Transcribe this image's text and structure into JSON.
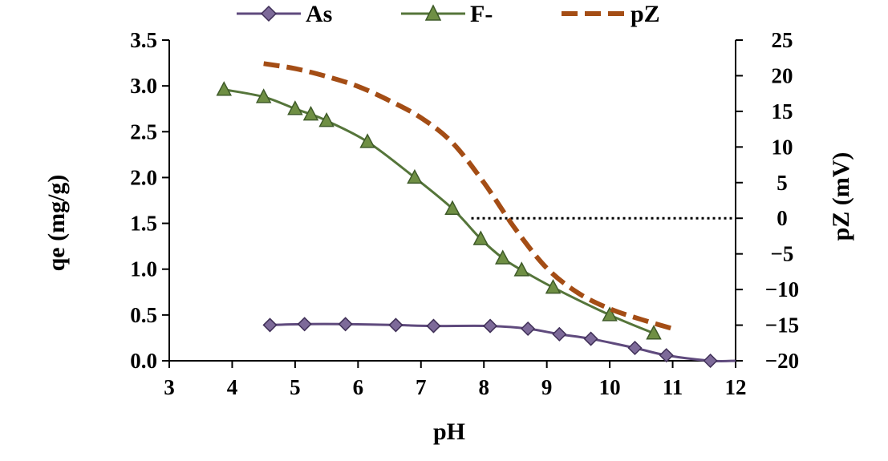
{
  "chart_data": {
    "type": "line",
    "title": "",
    "xlabel": "pH",
    "ylabel_left": "qe (mg/g)",
    "ylabel_right": "pZ (mV)",
    "xlim": [
      3,
      12
    ],
    "ylim_left": [
      0,
      3.5
    ],
    "ylim_right": [
      -20,
      25
    ],
    "x_ticks": [
      "3",
      "4",
      "5",
      "6",
      "7",
      "8",
      "9",
      "10",
      "11",
      "12"
    ],
    "y_ticks_left": [
      "0.0",
      "0.5",
      "1.0",
      "1.5",
      "2.0",
      "2.5",
      "3.0",
      "3.5"
    ],
    "y_ticks_right": [
      "-20",
      "-15",
      "-10",
      "-5",
      "0",
      "5",
      "10",
      "15",
      "20",
      "25"
    ],
    "legend_position": "top",
    "series": [
      {
        "name": "As",
        "axis": "left",
        "color": "#5f4a7d",
        "marker_color": "#7d6a99",
        "marker": "diamond",
        "points": [
          [
            4.6,
            0.39
          ],
          [
            5.15,
            0.4
          ],
          [
            5.8,
            0.4
          ],
          [
            6.6,
            0.39
          ],
          [
            7.2,
            0.38
          ],
          [
            8.1,
            0.38
          ],
          [
            8.7,
            0.35
          ],
          [
            9.2,
            0.29
          ],
          [
            9.7,
            0.24
          ],
          [
            10.4,
            0.14
          ],
          [
            10.9,
            0.06
          ],
          [
            11.6,
            0.0
          ]
        ],
        "line_end": [
          12.0,
          0.0
        ]
      },
      {
        "name": "F-",
        "axis": "left",
        "color": "#55753a",
        "marker_color": "#6f8f44",
        "marker": "triangle",
        "points": [
          [
            3.87,
            2.96
          ],
          [
            4.5,
            2.88
          ],
          [
            5.0,
            2.75
          ],
          [
            5.25,
            2.69
          ],
          [
            5.5,
            2.62
          ],
          [
            6.15,
            2.39
          ],
          [
            6.9,
            2.0
          ],
          [
            7.5,
            1.66
          ],
          [
            7.95,
            1.33
          ],
          [
            8.3,
            1.12
          ],
          [
            8.6,
            0.99
          ],
          [
            9.1,
            0.8
          ],
          [
            10.0,
            0.5
          ],
          [
            10.7,
            0.3
          ]
        ]
      },
      {
        "name": "pZ",
        "axis": "right",
        "color": "#a44d15",
        "dash": true,
        "points": [
          [
            4.5,
            21.7
          ],
          [
            5.0,
            21.0
          ],
          [
            5.5,
            19.9
          ],
          [
            6.0,
            18.5
          ],
          [
            6.5,
            16.5
          ],
          [
            7.0,
            14.1
          ],
          [
            7.5,
            10.6
          ],
          [
            8.0,
            5.0
          ],
          [
            8.5,
            -1.5
          ],
          [
            9.0,
            -7.0
          ],
          [
            9.5,
            -10.5
          ],
          [
            10.0,
            -12.7
          ],
          [
            10.5,
            -14.2
          ],
          [
            11.0,
            -15.5
          ]
        ]
      }
    ],
    "reference_line": {
      "axis": "right",
      "y": 0,
      "x_start": 7.8,
      "x_end": 12,
      "style": "dotted",
      "color": "#000000"
    }
  }
}
